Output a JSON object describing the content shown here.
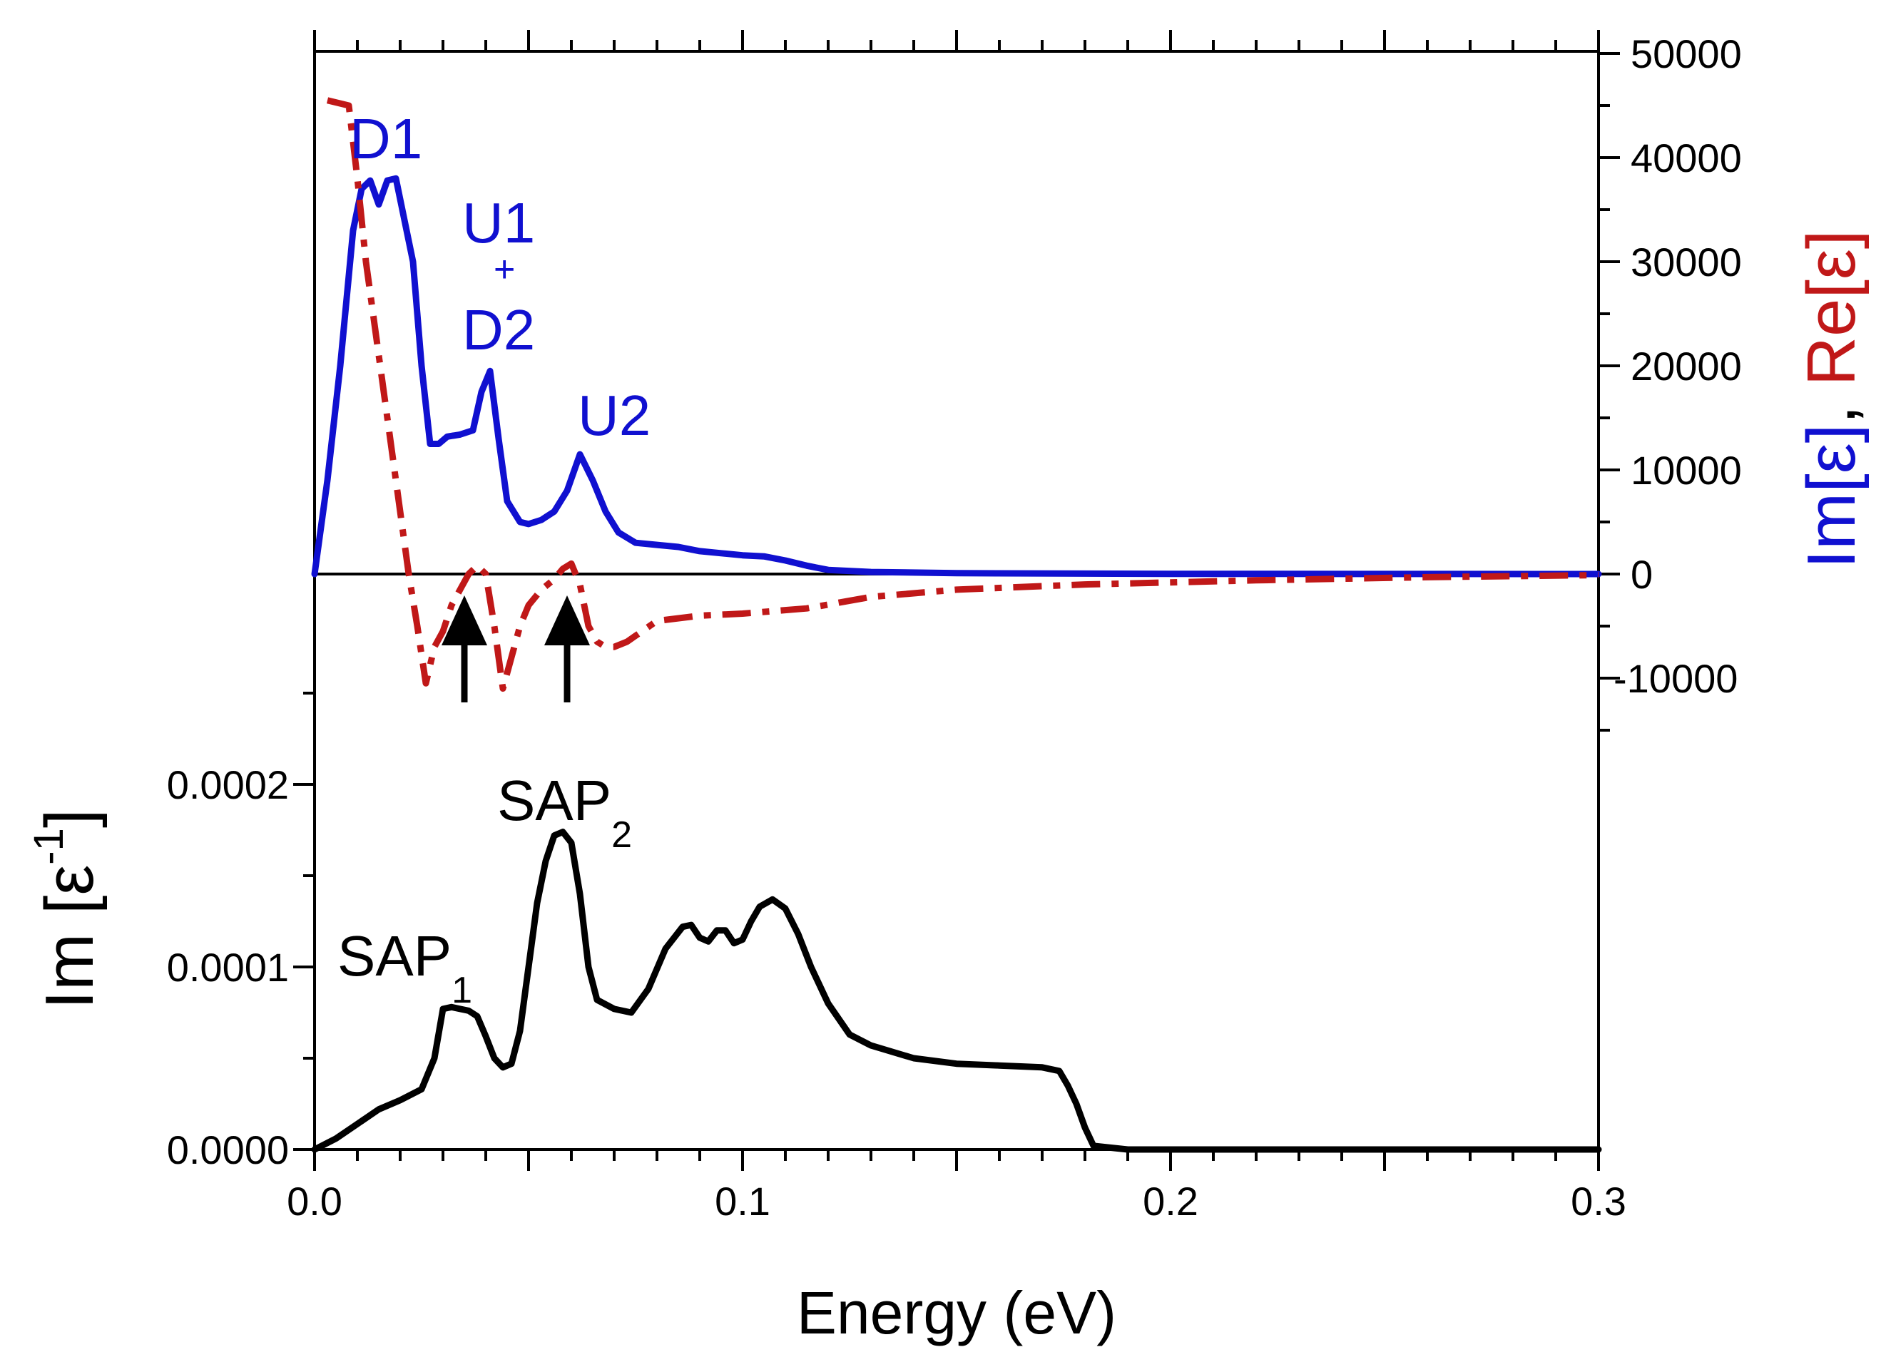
{
  "chart_data": {
    "type": "line",
    "xlabel": "Energy (eV)",
    "xlim": [
      0.0,
      0.3
    ],
    "x_ticks": [
      "0.0",
      "0.1",
      "0.2",
      "0.3"
    ],
    "x_tick_values": [
      0.0,
      0.1,
      0.2,
      0.3
    ],
    "top_panel": {
      "ylabel_parts": [
        {
          "text": "Im[ε]",
          "color": "#1010d0"
        },
        {
          "text": ", ",
          "color": "#000000"
        },
        {
          "text": "Re[ε]",
          "color": "#c01818"
        }
      ],
      "ylim": [
        -15000,
        50000
      ],
      "y_axis_side": "right",
      "y_ticks": [
        "50000",
        "40000",
        "30000",
        "20000",
        "10000",
        "0",
        "-10000"
      ],
      "y_tick_values": [
        50000,
        40000,
        30000,
        20000,
        10000,
        0,
        -10000
      ],
      "series": [
        {
          "name": "Im[ε]",
          "color": "#1010d0",
          "style": "solid",
          "x": [
            0.0,
            0.003,
            0.006,
            0.009,
            0.011,
            0.013,
            0.015,
            0.017,
            0.019,
            0.021,
            0.023,
            0.025,
            0.027,
            0.029,
            0.031,
            0.034,
            0.037,
            0.039,
            0.041,
            0.043,
            0.045,
            0.048,
            0.05,
            0.053,
            0.056,
            0.059,
            0.062,
            0.065,
            0.068,
            0.071,
            0.075,
            0.08,
            0.085,
            0.09,
            0.095,
            0.1,
            0.105,
            0.11,
            0.115,
            0.12,
            0.13,
            0.15,
            0.2,
            0.25,
            0.3
          ],
          "values": [
            0,
            9000,
            20000,
            33000,
            37000,
            37800,
            35500,
            37800,
            38000,
            34000,
            30000,
            20000,
            12500,
            12500,
            13200,
            13400,
            13800,
            17500,
            19500,
            13000,
            7000,
            5000,
            4800,
            5200,
            6000,
            8000,
            11500,
            9000,
            6000,
            4000,
            3000,
            2800,
            2600,
            2200,
            2000,
            1800,
            1700,
            1300,
            800,
            400,
            200,
            80,
            20,
            5,
            0
          ]
        },
        {
          "name": "Re[ε]",
          "color": "#c01818",
          "style": "dash-dot",
          "x": [
            0.003,
            0.008,
            0.01,
            0.012,
            0.014,
            0.016,
            0.018,
            0.02,
            0.022,
            0.024,
            0.026,
            0.028,
            0.03,
            0.032,
            0.034,
            0.036,
            0.038,
            0.04,
            0.042,
            0.044,
            0.046,
            0.048,
            0.05,
            0.053,
            0.056,
            0.058,
            0.06,
            0.062,
            0.064,
            0.066,
            0.068,
            0.07,
            0.073,
            0.08,
            0.09,
            0.1,
            0.115,
            0.13,
            0.15,
            0.18,
            0.22,
            0.26,
            0.3
          ],
          "values": [
            45500,
            45000,
            38000,
            30000,
            24000,
            18000,
            12000,
            6000,
            0,
            -5000,
            -10500,
            -7000,
            -5500,
            -3000,
            -1500,
            0,
            800,
            0,
            -5000,
            -11000,
            -8000,
            -5000,
            -3000,
            -1500,
            -500,
            500,
            1000,
            -1000,
            -5000,
            -6500,
            -7000,
            -7000,
            -6500,
            -4500,
            -4000,
            -3800,
            -3300,
            -2200,
            -1500,
            -1000,
            -600,
            -300,
            -100
          ]
        }
      ],
      "annotations": [
        {
          "text": "D1",
          "color": "#1010d0"
        },
        {
          "text": "U1",
          "color": "#1010d0"
        },
        {
          "text": "+",
          "color": "#1010d0"
        },
        {
          "text": "D2",
          "color": "#1010d0"
        },
        {
          "text": "U2",
          "color": "#1010d0"
        }
      ],
      "arrows_at_energy": [
        0.035,
        0.059
      ]
    },
    "bottom_panel": {
      "ylabel_main": "Im [ε",
      "ylabel_sup": "-1",
      "ylabel_close": "]",
      "ylim": [
        0.0,
        0.00026
      ],
      "y_axis_side": "left",
      "y_ticks": [
        "0.0000",
        "0.0001",
        "0.0002"
      ],
      "y_tick_values": [
        0.0,
        0.0001,
        0.0002
      ],
      "series": [
        {
          "name": "Im[ε⁻¹]",
          "color": "#000000",
          "style": "solid",
          "x": [
            0.0,
            0.005,
            0.01,
            0.015,
            0.02,
            0.025,
            0.028,
            0.03,
            0.032,
            0.034,
            0.036,
            0.038,
            0.04,
            0.042,
            0.044,
            0.046,
            0.048,
            0.05,
            0.052,
            0.054,
            0.056,
            0.058,
            0.06,
            0.062,
            0.064,
            0.066,
            0.07,
            0.074,
            0.078,
            0.082,
            0.086,
            0.088,
            0.09,
            0.092,
            0.094,
            0.096,
            0.098,
            0.1,
            0.102,
            0.104,
            0.107,
            0.11,
            0.113,
            0.116,
            0.12,
            0.125,
            0.13,
            0.14,
            0.15,
            0.16,
            0.17,
            0.174,
            0.176,
            0.178,
            0.18,
            0.182,
            0.19,
            0.25,
            0.3
          ],
          "values": [
            0.0,
            6e-06,
            1.4e-05,
            2.2e-05,
            2.7e-05,
            3.3e-05,
            5e-05,
            7.7e-05,
            7.8e-05,
            7.7e-05,
            7.6e-05,
            7.3e-05,
            6.2e-05,
            5e-05,
            4.5e-05,
            4.7e-05,
            6.5e-05,
            0.0001,
            0.000135,
            0.000158,
            0.000172,
            0.000174,
            0.000168,
            0.00014,
            0.0001,
            8.2e-05,
            7.7e-05,
            7.5e-05,
            8.8e-05,
            0.00011,
            0.000122,
            0.000123,
            0.000116,
            0.000114,
            0.00012,
            0.00012,
            0.000113,
            0.000115,
            0.000125,
            0.000133,
            0.000137,
            0.000132,
            0.000118,
            0.0001,
            8e-05,
            6.3e-05,
            5.7e-05,
            5e-05,
            4.7e-05,
            4.6e-05,
            4.5e-05,
            4.3e-05,
            3.5e-05,
            2.5e-05,
            1.2e-05,
            2e-06,
            0.0,
            0.0,
            0.0
          ]
        }
      ],
      "annotations": [
        {
          "text": "SAP",
          "sub": "1"
        },
        {
          "text": "SAP",
          "sub": "2"
        }
      ]
    }
  }
}
